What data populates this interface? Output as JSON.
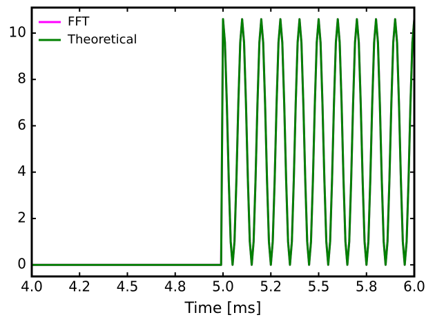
{
  "chart_data": {
    "type": "line",
    "xlabel": "Time [ms]",
    "x": [
      4,
      4.99,
      5,
      5.01,
      5.02,
      5.03,
      5.04,
      5.05,
      5.06,
      5.07,
      5.08,
      5.09,
      5.1,
      5.11,
      5.12,
      5.13,
      5.14,
      5.15,
      5.16,
      5.17,
      5.18,
      5.19,
      5.2,
      5.21,
      5.22,
      5.23,
      5.24,
      5.25,
      5.26,
      5.27,
      5.28,
      5.29,
      5.3,
      5.31,
      5.32,
      5.33,
      5.34,
      5.35,
      5.36,
      5.37,
      5.38,
      5.39,
      5.4,
      5.41,
      5.42,
      5.43,
      5.44,
      5.45,
      5.46,
      5.47,
      5.48,
      5.49,
      5.5,
      5.51,
      5.52,
      5.53,
      5.54,
      5.55,
      5.56,
      5.57,
      5.58,
      5.59,
      5.6,
      5.61,
      5.62,
      5.63,
      5.64,
      5.65,
      5.66,
      5.67,
      5.68,
      5.69,
      5.7,
      5.71,
      5.72,
      5.73,
      5.74,
      5.75,
      5.76,
      5.77,
      5.78,
      5.79,
      5.8,
      5.81,
      5.82,
      5.83,
      5.84,
      5.85,
      5.86,
      5.87,
      5.88,
      5.89,
      5.9,
      5.91,
      5.92,
      5.93,
      5.94,
      5.95,
      5.96,
      5.97,
      5.98,
      5.99,
      6
    ],
    "series": [
      {
        "name": "FFT",
        "color": "#ff00ff",
        "values": [
          0,
          0,
          10.6,
          9.59,
          6.94,
          3.66,
          1.01,
          0,
          1.01,
          3.66,
          6.94,
          9.59,
          10.6,
          9.59,
          6.94,
          3.66,
          1.01,
          0,
          1.01,
          3.66,
          6.94,
          9.59,
          10.6,
          9.59,
          6.94,
          3.66,
          1.01,
          0,
          1.01,
          3.66,
          6.94,
          9.59,
          10.6,
          9.59,
          6.94,
          3.66,
          1.01,
          0,
          1.01,
          3.66,
          6.94,
          9.59,
          10.6,
          9.59,
          6.94,
          3.66,
          1.01,
          0,
          1.01,
          3.66,
          6.94,
          9.59,
          10.6,
          9.59,
          6.94,
          3.66,
          1.01,
          0,
          1.01,
          3.66,
          6.94,
          9.59,
          10.6,
          9.59,
          6.94,
          3.66,
          1.01,
          0,
          1.01,
          3.66,
          6.94,
          9.59,
          10.6,
          9.59,
          6.94,
          3.66,
          1.01,
          0,
          1.01,
          3.66,
          6.94,
          9.59,
          10.6,
          9.59,
          6.94,
          3.66,
          1.01,
          0,
          1.01,
          3.66,
          6.94,
          9.59,
          10.6,
          9.59,
          6.94,
          3.66,
          1.01,
          0,
          1.01,
          3.66,
          6.94,
          9.59,
          10.6
        ]
      },
      {
        "name": "Theoretical",
        "color": "#008000",
        "values": [
          0,
          0,
          10.6,
          9.59,
          6.94,
          3.66,
          1.01,
          0,
          1.01,
          3.66,
          6.94,
          9.59,
          10.6,
          9.59,
          6.94,
          3.66,
          1.01,
          0,
          1.01,
          3.66,
          6.94,
          9.59,
          10.6,
          9.59,
          6.94,
          3.66,
          1.01,
          0,
          1.01,
          3.66,
          6.94,
          9.59,
          10.6,
          9.59,
          6.94,
          3.66,
          1.01,
          0,
          1.01,
          3.66,
          6.94,
          9.59,
          10.6,
          9.59,
          6.94,
          3.66,
          1.01,
          0,
          1.01,
          3.66,
          6.94,
          9.59,
          10.6,
          9.59,
          6.94,
          3.66,
          1.01,
          0,
          1.01,
          3.66,
          6.94,
          9.59,
          10.6,
          9.59,
          6.94,
          3.66,
          1.01,
          0,
          1.01,
          3.66,
          6.94,
          9.59,
          10.6,
          9.59,
          6.94,
          3.66,
          1.01,
          0,
          1.01,
          3.66,
          6.94,
          9.59,
          10.6,
          9.59,
          6.94,
          3.66,
          1.01,
          0,
          1.01,
          3.66,
          6.94,
          9.59,
          10.6,
          9.59,
          6.94,
          3.66,
          1.01,
          0,
          1.01,
          3.66,
          6.94,
          9.59,
          10.6
        ]
      }
    ],
    "xlim": [
      4,
      6
    ],
    "xticks": [
      {
        "value": 4,
        "label": "4.0"
      },
      {
        "value": 4.25,
        "label": "4.2"
      },
      {
        "value": 4.5,
        "label": "4.5"
      },
      {
        "value": 4.75,
        "label": "4.8"
      },
      {
        "value": 5,
        "label": "5.0"
      },
      {
        "value": 5.25,
        "label": "5.2"
      },
      {
        "value": 5.5,
        "label": "5.5"
      },
      {
        "value": 5.75,
        "label": "5.8"
      },
      {
        "value": 6,
        "label": "6.0"
      }
    ],
    "ylim": [
      -0.5,
      11.1
    ],
    "yticks": [
      0,
      2,
      4,
      6,
      8,
      10
    ],
    "grid": false,
    "legend": "upper-left"
  }
}
